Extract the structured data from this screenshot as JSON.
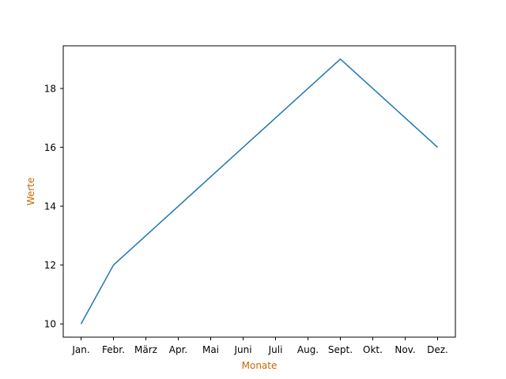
{
  "colors": {
    "line": "#1f77b4",
    "axis_label": "#cc6600",
    "frame": "#000000",
    "background": "#ffffff"
  },
  "chart_data": {
    "type": "line",
    "title": "",
    "xlabel": "Monate",
    "ylabel": "Werte",
    "categories": [
      "Jan.",
      "Febr.",
      "März",
      "Apr.",
      "Mai",
      "Juni",
      "Juli",
      "Aug.",
      "Sept.",
      "Okt.",
      "Nov.",
      "Dez."
    ],
    "series": [
      {
        "values": [
          10,
          12,
          13,
          14,
          15,
          16,
          17,
          18,
          19,
          18,
          17,
          16
        ]
      }
    ],
    "yticks": [
      10,
      12,
      14,
      16,
      18
    ],
    "ylim": [
      9.55,
      19.45
    ],
    "grid": false,
    "legend": "none"
  }
}
